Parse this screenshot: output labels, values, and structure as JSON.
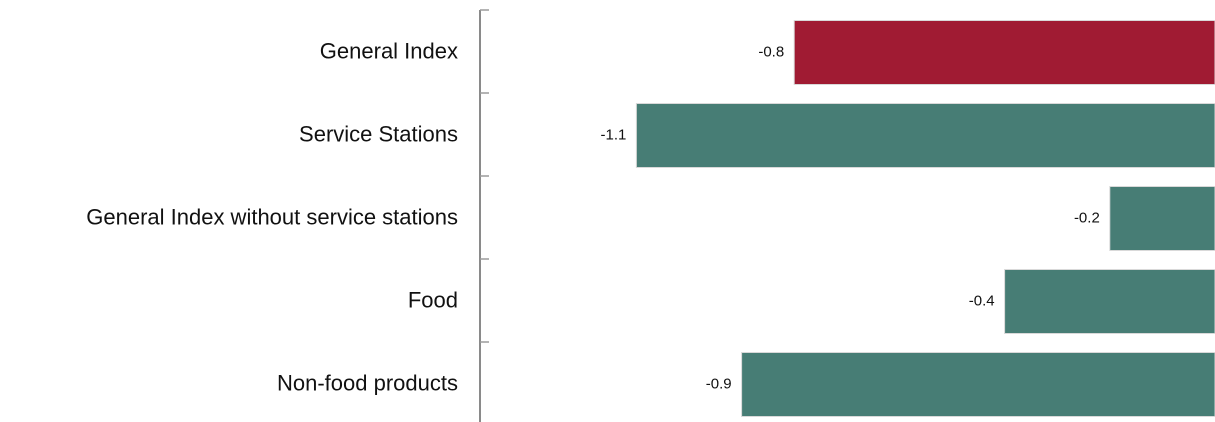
{
  "chart_data": {
    "type": "bar",
    "orientation": "horizontal",
    "categories": [
      "General Index",
      "Service Stations",
      "General Index without service stations",
      "Food",
      "Non-food products"
    ],
    "values": [
      -0.8,
      -1.1,
      -0.2,
      -0.4,
      -0.9
    ],
    "data_labels": [
      "-0.8",
      "-1.1",
      "-0.2",
      "-0.4",
      "-0.9"
    ],
    "bar_colors": [
      "#a01b33",
      "#477d75",
      "#477d75",
      "#477d75",
      "#477d75"
    ],
    "title": "",
    "xlabel": "",
    "ylabel": "",
    "grid": false,
    "legend": "none"
  }
}
